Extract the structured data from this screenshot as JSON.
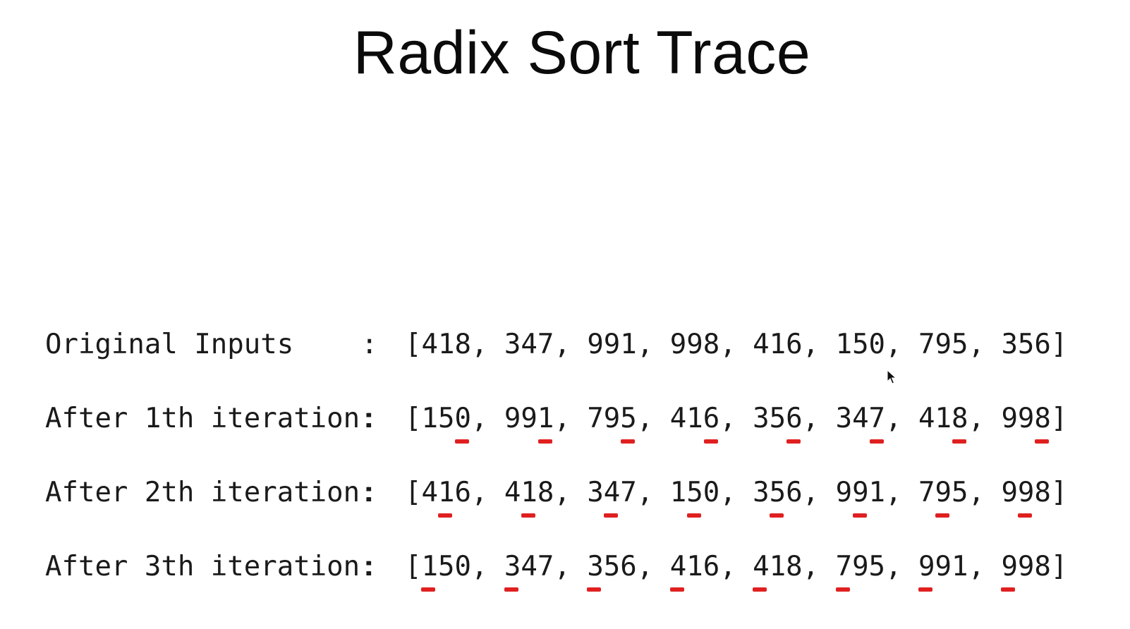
{
  "title": "Radix Sort Trace",
  "marker_color": "#e02020",
  "rows": [
    {
      "label": "Original Inputs",
      "separator": ":",
      "values": [
        "418",
        "347",
        "991",
        "998",
        "416",
        "150",
        "795",
        "356"
      ],
      "underlined_digit": null
    },
    {
      "label": "After 1th iteration:",
      "separator": ":",
      "values": [
        "150",
        "991",
        "795",
        "416",
        "356",
        "347",
        "418",
        "998"
      ],
      "underlined_digit": "ones"
    },
    {
      "label": "After 2th iteration:",
      "separator": ":",
      "values": [
        "416",
        "418",
        "347",
        "150",
        "356",
        "991",
        "795",
        "998"
      ],
      "underlined_digit": "tens"
    },
    {
      "label": "After 3th iteration:",
      "separator": ":",
      "values": [
        "150",
        "347",
        "356",
        "416",
        "418",
        "795",
        "991",
        "998"
      ],
      "underlined_digit": "hundreds"
    }
  ],
  "cursor_icon": "arrow-cursor-icon"
}
